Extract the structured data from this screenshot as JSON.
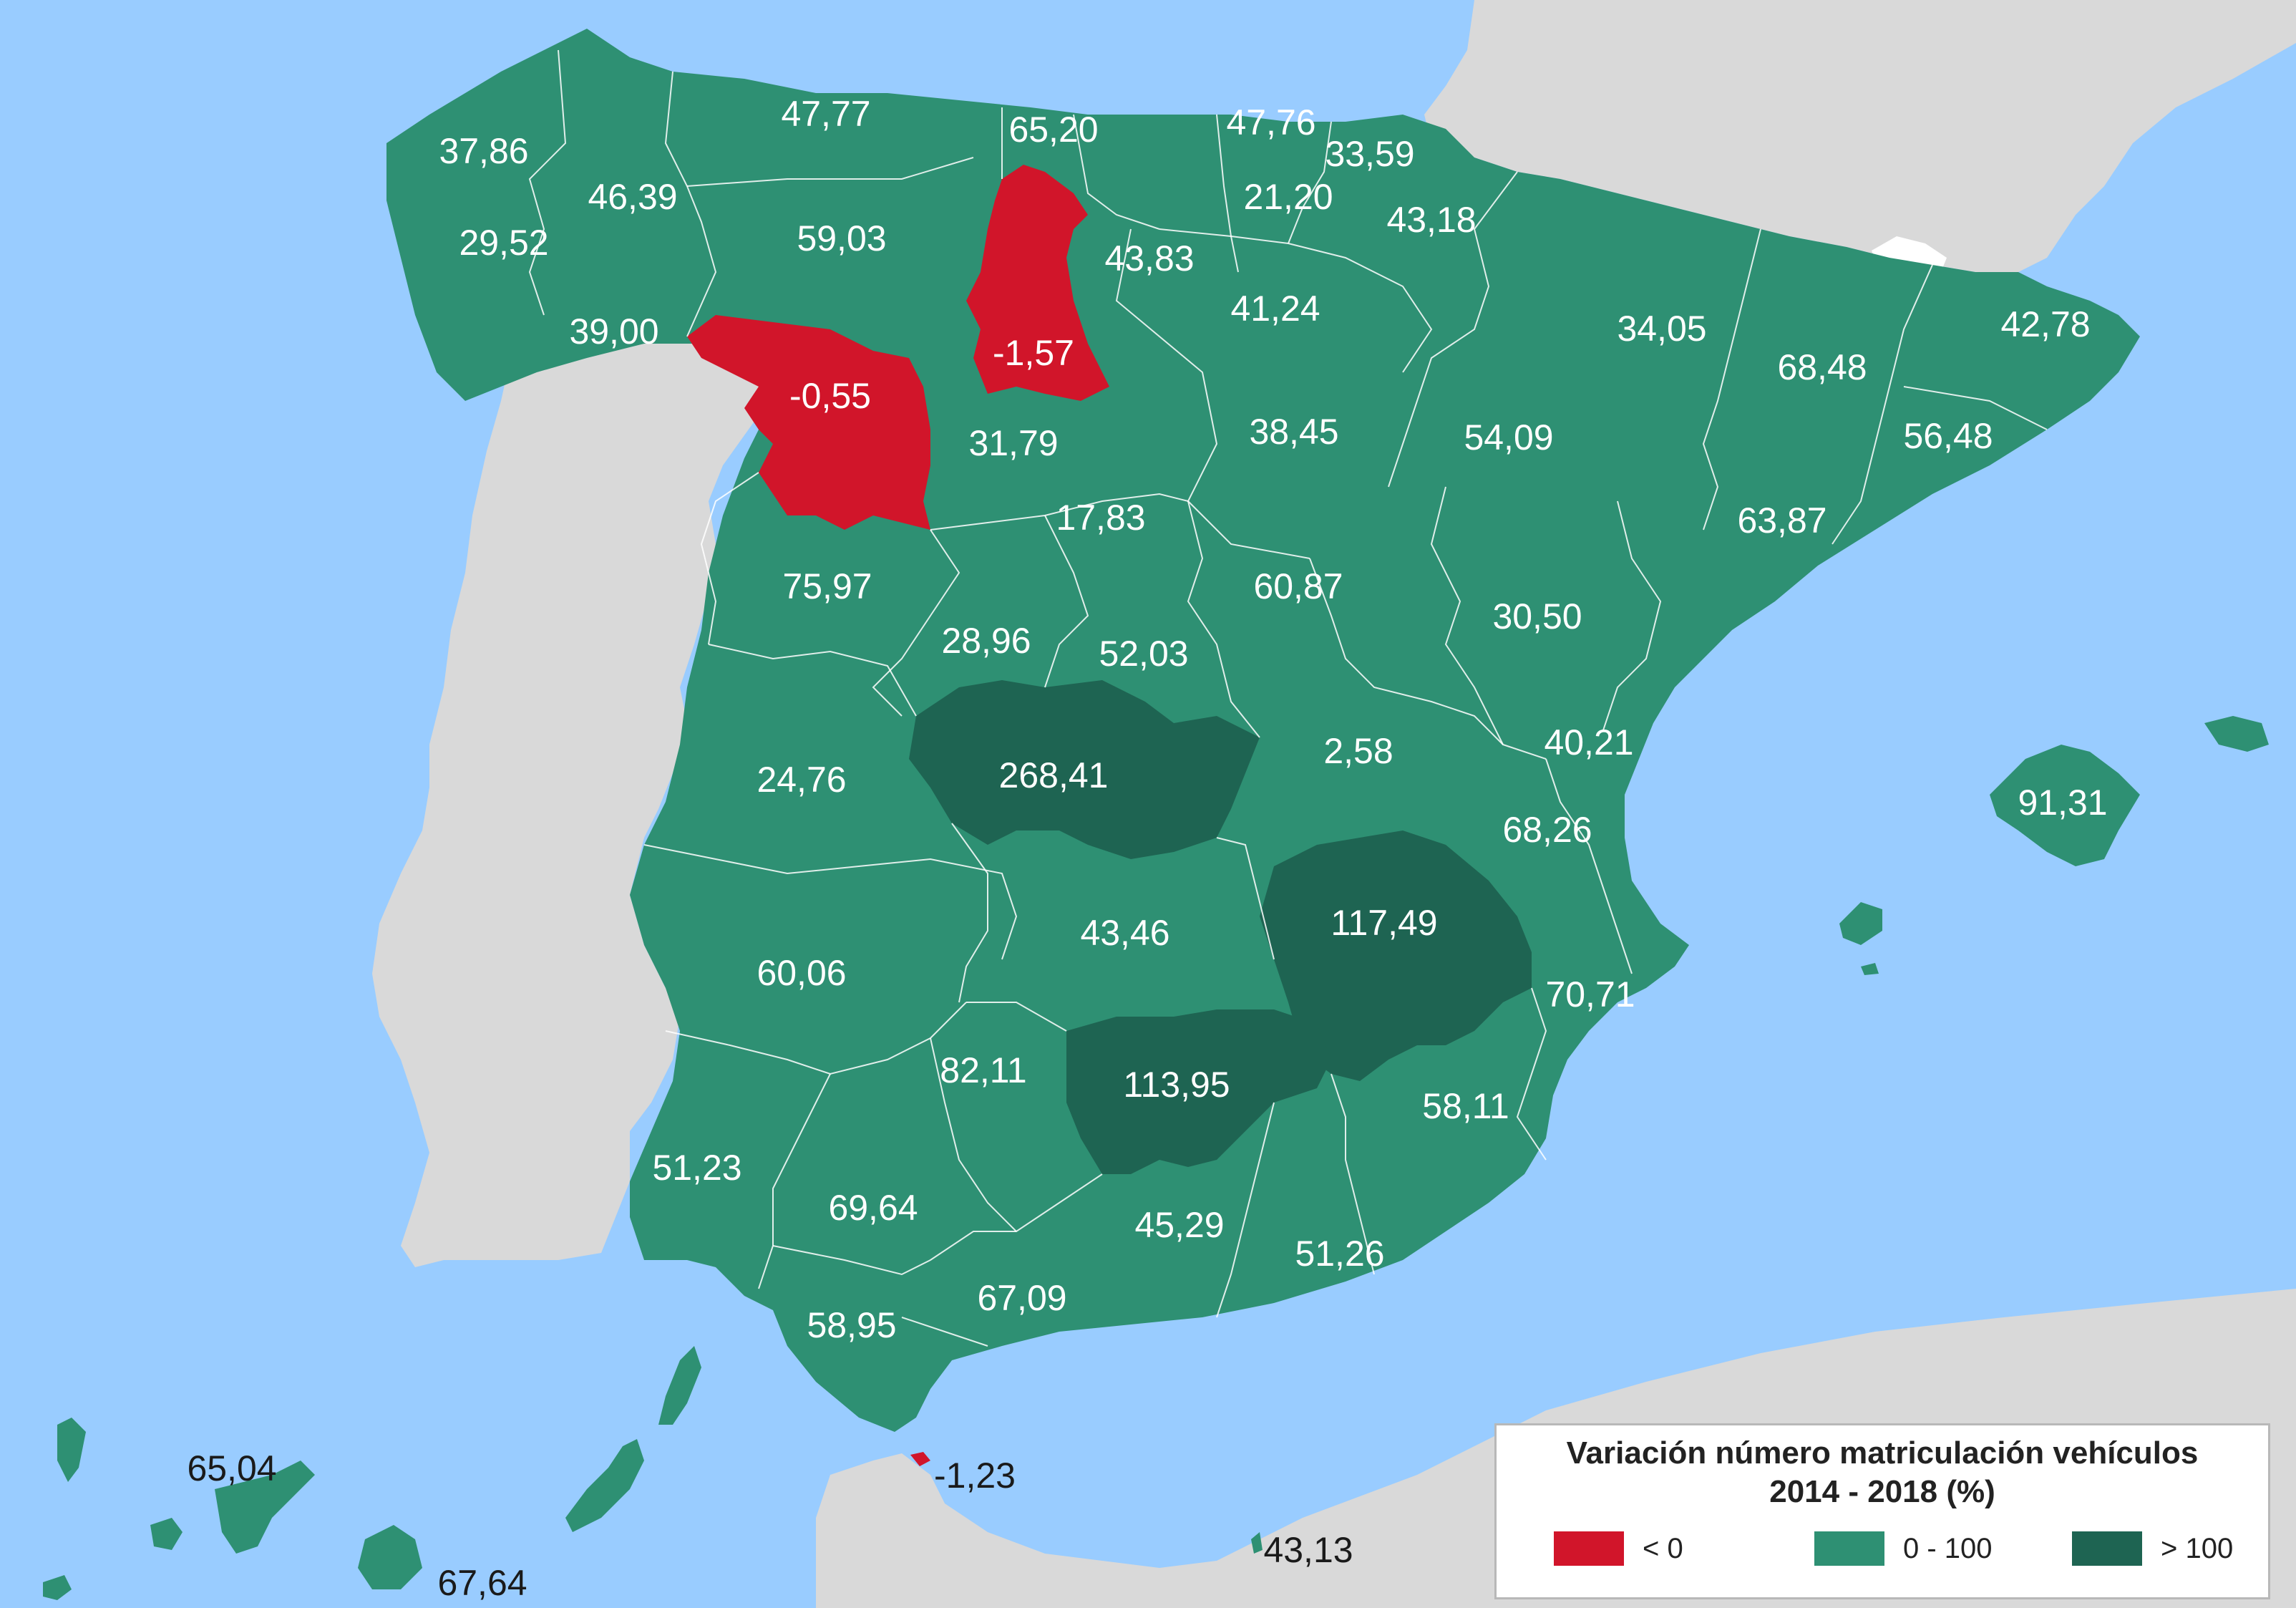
{
  "colors": {
    "sea": "#99ccff",
    "other_land": "#d9d9d9",
    "negative": "#d1152a",
    "mid": "#2e9073",
    "high": "#1e6452"
  },
  "legend": {
    "title": "Variación número matriculación vehículos",
    "subtitle": "2014 - 2018 (%)",
    "items": [
      {
        "label": "< 0",
        "color": "#d1152a"
      },
      {
        "label": "0 - 100",
        "color": "#2e9073"
      },
      {
        "label": "> 100",
        "color": "#1e6452"
      }
    ]
  },
  "regions": [
    {
      "value": "37,86"
    },
    {
      "value": "46,39"
    },
    {
      "value": "47,77"
    },
    {
      "value": "65,20"
    },
    {
      "value": "47,76"
    },
    {
      "value": "33,59"
    },
    {
      "value": "21,20"
    },
    {
      "value": "43,18"
    },
    {
      "value": "29,52"
    },
    {
      "value": "59,03"
    },
    {
      "value": "43,83"
    },
    {
      "value": "39,00"
    },
    {
      "value": "-0,55"
    },
    {
      "value": "-1,57"
    },
    {
      "value": "41,24"
    },
    {
      "value": "34,05"
    },
    {
      "value": "42,78"
    },
    {
      "value": "68,48"
    },
    {
      "value": "38,45"
    },
    {
      "value": "54,09"
    },
    {
      "value": "31,79"
    },
    {
      "value": "56,48"
    },
    {
      "value": "17,83"
    },
    {
      "value": "63,87"
    },
    {
      "value": "75,97"
    },
    {
      "value": "60,87"
    },
    {
      "value": "30,50"
    },
    {
      "value": "28,96"
    },
    {
      "value": "52,03"
    },
    {
      "value": "40,21"
    },
    {
      "value": "24,76"
    },
    {
      "value": "268,41"
    },
    {
      "value": "2,58"
    },
    {
      "value": "91,31"
    },
    {
      "value": "68,26"
    },
    {
      "value": "43,46"
    },
    {
      "value": "117,49"
    },
    {
      "value": "60,06"
    },
    {
      "value": "70,71"
    },
    {
      "value": "82,11"
    },
    {
      "value": "113,95"
    },
    {
      "value": "58,11"
    },
    {
      "value": "51,23"
    },
    {
      "value": "69,64"
    },
    {
      "value": "45,29"
    },
    {
      "value": "51,26"
    },
    {
      "value": "67,09"
    },
    {
      "value": "58,95"
    },
    {
      "value": "65,04"
    },
    {
      "value": "-1,23"
    },
    {
      "value": "43,13"
    },
    {
      "value": "67,64"
    }
  ]
}
